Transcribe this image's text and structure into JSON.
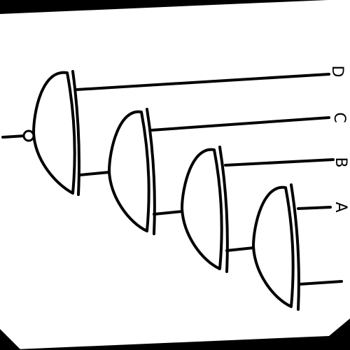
{
  "colors": {
    "background": "#ffffff",
    "border": "#000000",
    "ink": "#000000"
  },
  "diagram": {
    "type": "logic-circuit",
    "gates": [
      {
        "id": "gate-1",
        "kind": "nor"
      },
      {
        "id": "gate-2",
        "kind": "or"
      },
      {
        "id": "gate-3",
        "kind": "or"
      },
      {
        "id": "gate-4",
        "kind": "or"
      }
    ],
    "inputs": [
      {
        "label": "D"
      },
      {
        "label": "C"
      },
      {
        "label": "B"
      },
      {
        "label": "A"
      }
    ],
    "connections": [
      {
        "from": "D",
        "to": "gate-1"
      },
      {
        "from": "gate-2",
        "to": "gate-1"
      },
      {
        "from": "C",
        "to": "gate-2"
      },
      {
        "from": "gate-3",
        "to": "gate-2"
      },
      {
        "from": "B",
        "to": "gate-3"
      },
      {
        "from": "gate-4",
        "to": "gate-3"
      },
      {
        "from": "A",
        "to": "gate-4"
      },
      {
        "from": "unlabeled-input",
        "to": "gate-4"
      }
    ]
  }
}
